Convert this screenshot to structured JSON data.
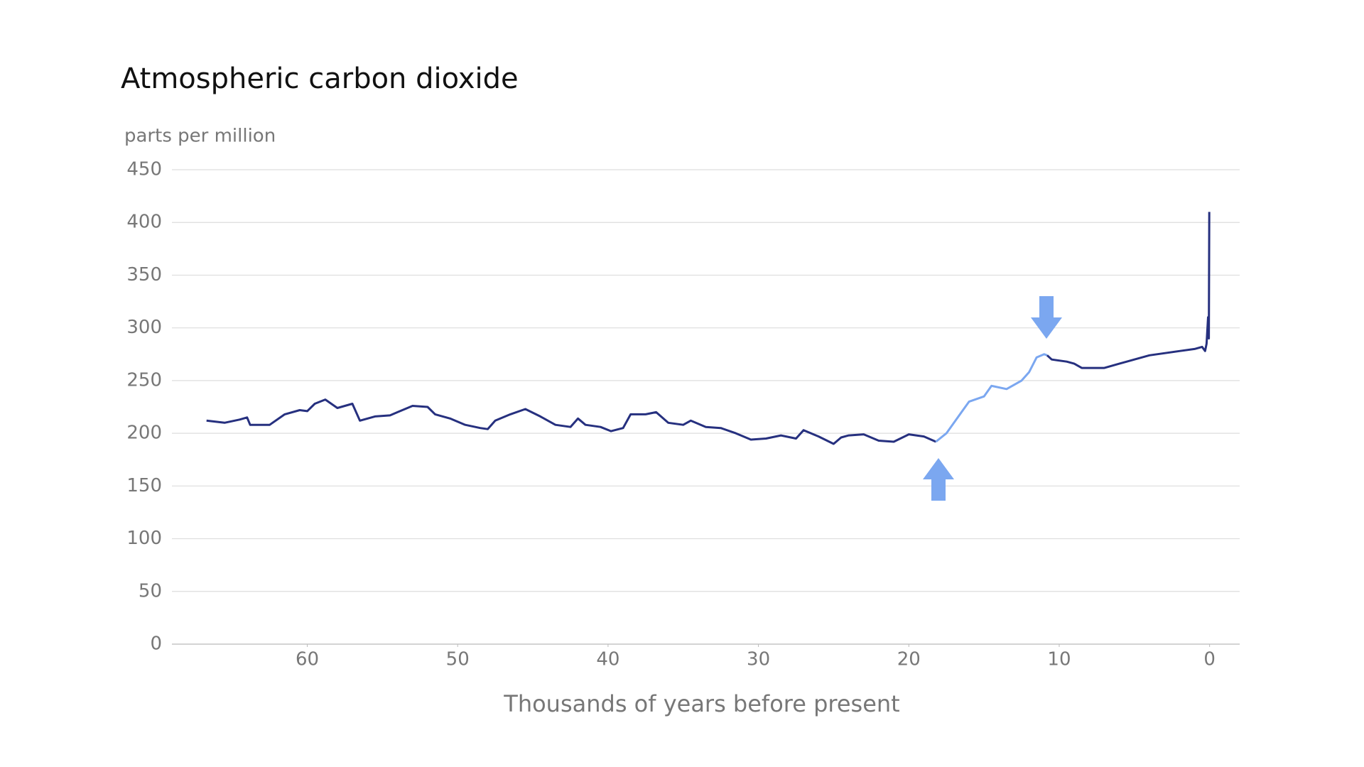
{
  "chart_data": {
    "type": "line",
    "title": "Atmospheric carbon dioxide",
    "ylabel": "parts per million",
    "xlabel": "Thousands of years before present",
    "xlim": [
      69,
      -2
    ],
    "ylim": [
      0,
      450
    ],
    "xticks": [
      60,
      50,
      40,
      30,
      20,
      10,
      0
    ],
    "yticks": [
      0,
      50,
      100,
      150,
      200,
      250,
      300,
      350,
      400,
      450
    ],
    "grid": true,
    "series": [
      {
        "color": "#26307f",
        "x": [
          66.7,
          65.5,
          64.5,
          64.0,
          63.8,
          62.5,
          61.5,
          60.5,
          60,
          59.5,
          58.8,
          58,
          57,
          56.5,
          55.5,
          54.5,
          54,
          53,
          52,
          51.5,
          50.5,
          49.5,
          48.5,
          48,
          47.5,
          46.5,
          45.5,
          44.5,
          43.5,
          42.5,
          42,
          41.5,
          40.5,
          39.8,
          39,
          38.5,
          37.5,
          36.8,
          36,
          35,
          34.5,
          33.5,
          32.5,
          31.5,
          30.5,
          29.5,
          28.5,
          27.5,
          27,
          26,
          25,
          24.5,
          24,
          23,
          22,
          21,
          20,
          19,
          18.2
        ],
        "values": [
          212,
          210,
          213,
          215,
          208,
          208,
          218,
          222,
          221,
          228,
          232,
          224,
          228,
          212,
          216,
          217,
          220,
          226,
          225,
          218,
          214,
          208,
          205,
          204,
          212,
          218,
          223,
          216,
          208,
          206,
          214,
          208,
          206,
          202,
          205,
          218,
          218,
          220,
          210,
          208,
          212,
          206,
          205,
          200,
          194,
          195,
          198,
          195,
          203,
          197,
          190,
          196,
          198,
          199,
          193,
          192,
          199,
          197,
          192
        ]
      },
      {
        "color": "#7ba7f0",
        "x": [
          18.2,
          17.5,
          16.5,
          16,
          15,
          14.5,
          13.5,
          12.5,
          12,
          11.5,
          11,
          10.8
        ],
        "values": [
          192,
          200,
          220,
          230,
          235,
          245,
          242,
          250,
          258,
          272,
          275,
          274
        ]
      },
      {
        "color": "#26307f",
        "x": [
          10.8,
          10.5,
          9.5,
          9,
          8.5,
          7,
          6,
          5,
          4,
          3,
          2,
          1,
          0.5,
          0.3,
          0.2,
          0.1,
          0.05,
          0.02
        ],
        "values": [
          274,
          270,
          268,
          266,
          262,
          262,
          266,
          270,
          274,
          276,
          278,
          280,
          282,
          278,
          285,
          310,
          290,
          410
        ]
      }
    ]
  }
}
